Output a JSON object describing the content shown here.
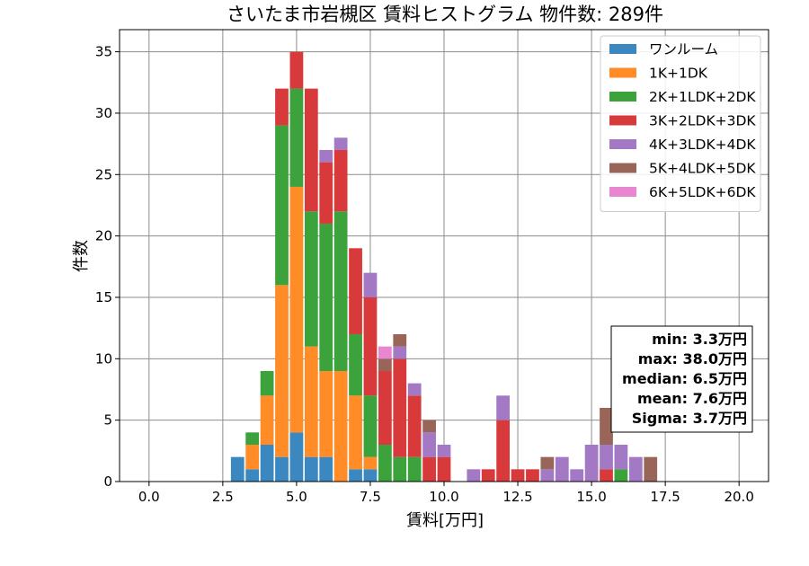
{
  "chart_data": {
    "type": "bar",
    "stacked": true,
    "title": "さいたま市岩槻区 賃料ヒストグラム  物件数: 289件",
    "xlabel": "賃料[万円]",
    "ylabel": "件数",
    "xlim": [
      -1,
      21
    ],
    "ylim": [
      0,
      36.8
    ],
    "grid": true,
    "legend_position": "top-right",
    "xticks": [
      0,
      2.5,
      5,
      7.5,
      10,
      12.5,
      15,
      17.5,
      20
    ],
    "xtick_labels": [
      "0.0",
      "2.5",
      "5.0",
      "7.5",
      "10.0",
      "12.5",
      "15.0",
      "17.5",
      "20.0"
    ],
    "yticks": [
      0,
      5,
      10,
      15,
      20,
      25,
      30,
      35
    ],
    "ytick_labels": [
      "0",
      "5",
      "10",
      "15",
      "20",
      "25",
      "30",
      "35"
    ],
    "bin_width": 0.5,
    "bar_width": 0.45,
    "x": [
      3.0,
      3.5,
      4.0,
      4.5,
      5.0,
      5.5,
      6.0,
      6.5,
      7.0,
      7.5,
      8.0,
      8.5,
      9.0,
      9.5,
      10.0,
      10.5,
      11.0,
      11.5,
      12.0,
      12.5,
      13.0,
      13.5,
      14.0,
      14.5,
      15.0,
      15.5,
      16.0,
      16.5,
      17.0
    ],
    "series": [
      {
        "name": "ワンルーム",
        "color": "#3a88bf",
        "values": [
          2,
          1,
          3,
          2,
          4,
          2,
          2,
          0,
          1,
          1,
          0,
          0,
          0,
          0,
          0,
          0,
          0,
          0,
          0,
          0,
          0,
          0,
          0,
          0,
          0,
          0,
          0,
          0,
          0
        ]
      },
      {
        "name": "1K+1DK",
        "color": "#ff8c27",
        "values": [
          0,
          2,
          4,
          14,
          20,
          9,
          7,
          9,
          6,
          1,
          0,
          0,
          0,
          0,
          0,
          0,
          0,
          0,
          0,
          0,
          0,
          0,
          0,
          0,
          0,
          0,
          0,
          0,
          0
        ]
      },
      {
        "name": "2K+1LDK+2DK",
        "color": "#3ca23c",
        "values": [
          0,
          1,
          2,
          13,
          8,
          11,
          12,
          13,
          5,
          5,
          3,
          2,
          2,
          0,
          0,
          0,
          0,
          0,
          0,
          0,
          0,
          0,
          0,
          0,
          0,
          0,
          1,
          0,
          0
        ]
      },
      {
        "name": "3K+2LDK+3DK",
        "color": "#d83a3b",
        "values": [
          0,
          0,
          0,
          3,
          3,
          10,
          5,
          5,
          7,
          8,
          6,
          8,
          5,
          2,
          2,
          0,
          0,
          1,
          5,
          1,
          1,
          0,
          0,
          0,
          0,
          1,
          0,
          0,
          0
        ]
      },
      {
        "name": "4K+3LDK+4DK",
        "color": "#a378c4",
        "values": [
          0,
          0,
          0,
          0,
          0,
          0,
          1,
          1,
          0,
          2,
          0,
          1,
          1,
          2,
          1,
          0,
          1,
          0,
          2,
          0,
          0,
          1,
          2,
          1,
          3,
          2,
          2,
          2,
          0
        ]
      },
      {
        "name": "5K+4LDK+5DK",
        "color": "#9a6559",
        "values": [
          0,
          0,
          0,
          0,
          0,
          0,
          0,
          0,
          0,
          0,
          1,
          1,
          0,
          1,
          0,
          0,
          0,
          0,
          0,
          0,
          0,
          1,
          0,
          0,
          0,
          3,
          0,
          0,
          2
        ]
      },
      {
        "name": "6K+5LDK+6DK",
        "color": "#e887cf",
        "values": [
          0,
          0,
          0,
          0,
          0,
          0,
          0,
          0,
          0,
          0,
          1,
          0,
          0,
          0,
          0,
          0,
          0,
          0,
          0,
          0,
          0,
          0,
          0,
          0,
          0,
          0,
          0,
          0,
          0
        ]
      }
    ],
    "stats": [
      "min: 3.3万円",
      "max: 38.0万円",
      "median: 6.5万円",
      "mean: 7.6万円",
      "Sigma: 3.7万円"
    ]
  }
}
